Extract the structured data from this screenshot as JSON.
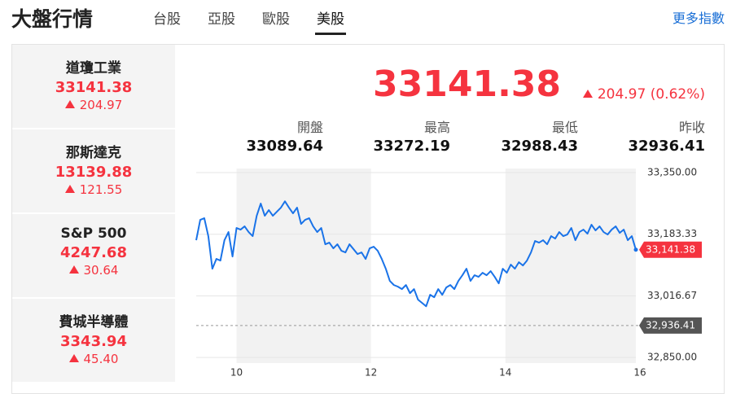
{
  "header": {
    "title": "大盤行情",
    "tabs": [
      "台股",
      "亞股",
      "歐股",
      "美股"
    ],
    "active_tab": 3,
    "more_link": "更多指數"
  },
  "indices": [
    {
      "name": "道瓊工業",
      "price": "33141.38",
      "change": "204.97"
    },
    {
      "name": "那斯達克",
      "price": "13139.88",
      "change": "121.55"
    },
    {
      "name": "S&P 500",
      "price": "4247.68",
      "change": "30.64"
    },
    {
      "name": "費城半導體",
      "price": "3343.94",
      "change": "45.40"
    }
  ],
  "quote": {
    "price": "33141.38",
    "change": "204.97",
    "change_pct": "(0.62%)",
    "stats": [
      {
        "label": "開盤",
        "value": "33089.64"
      },
      {
        "label": "最高",
        "value": "33272.19"
      },
      {
        "label": "最低",
        "value": "32988.43"
      },
      {
        "label": "昨收",
        "value": "32936.41"
      }
    ]
  },
  "chart_data": {
    "type": "line",
    "color": "#1a73e8",
    "x": [
      9.4,
      9.46,
      9.52,
      9.58,
      9.64,
      9.7,
      9.76,
      9.82,
      9.88,
      9.94,
      10,
      10.06,
      10.12,
      10.18,
      10.24,
      10.3,
      10.36,
      10.42,
      10.48,
      10.54,
      10.6,
      10.66,
      10.72,
      10.78,
      10.84,
      10.9,
      10.96,
      11.02,
      11.08,
      11.14,
      11.2,
      11.26,
      11.32,
      11.38,
      11.44,
      11.5,
      11.56,
      11.62,
      11.68,
      11.74,
      11.8,
      11.86,
      11.92,
      11.98,
      12.04,
      12.1,
      12.16,
      12.22,
      12.28,
      12.34,
      12.4,
      12.46,
      12.52,
      12.58,
      12.64,
      12.7,
      12.76,
      12.82,
      12.88,
      12.94,
      13,
      13.06,
      13.12,
      13.18,
      13.24,
      13.3,
      13.36,
      13.42,
      13.48,
      13.54,
      13.6,
      13.66,
      13.72,
      13.78,
      13.84,
      13.9,
      13.96,
      14.02,
      14.08,
      14.14,
      14.2,
      14.26,
      14.32,
      14.38,
      14.44,
      14.5,
      14.56,
      14.62,
      14.68,
      14.74,
      14.8,
      14.86,
      14.92,
      14.98,
      15.04,
      15.1,
      15.16,
      15.22,
      15.28,
      15.34,
      15.4,
      15.46,
      15.52,
      15.58,
      15.64,
      15.7,
      15.76,
      15.82,
      15.88,
      15.94
    ],
    "values": [
      33167.2,
      33222.2,
      33226.7,
      33178.2,
      33090.1,
      33116.5,
      33112.1,
      33167.2,
      33189.2,
      33123.1,
      33200.2,
      33195.8,
      33204.6,
      33189.2,
      33178.2,
      33233.3,
      33266.3,
      33233.3,
      33248.7,
      33233.3,
      33244.3,
      33255.3,
      33272.19,
      33255.3,
      33239.9,
      33255.3,
      33211.2,
      33222.2,
      33226.7,
      33204.6,
      33189.2,
      33200.2,
      33156.2,
      33160.6,
      33145.2,
      33156.2,
      33138.6,
      33134.1,
      33156.2,
      33143.0,
      33129.7,
      33134.1,
      33116.5,
      33145.2,
      33149.6,
      33138.6,
      33116.5,
      33090.1,
      33057.1,
      33046.0,
      33041.6,
      33035.0,
      33046.0,
      33024.0,
      33035.0,
      33006.4,
      32997.6,
      32988.43,
      33019.6,
      33013.0,
      33035.0,
      33019.6,
      33039.4,
      33046.0,
      33035.0,
      33057.1,
      33072.5,
      33090.1,
      33057.1,
      33072.5,
      33068.1,
      33079.1,
      33072.5,
      33083.5,
      33068.1,
      33050.4,
      33090.1,
      33079.1,
      33101.1,
      33090.1,
      33107.7,
      33098.9,
      33112.1,
      33134.1,
      33165.0,
      33160.6,
      33167.2,
      33156.2,
      33178.2,
      33171.6,
      33189.2,
      33178.2,
      33182.6,
      33200.2,
      33167.2,
      33189.2,
      33195.8,
      33184.8,
      33209.0,
      33193.6,
      33204.6,
      33189.2,
      33182.6,
      33195.8,
      33204.6,
      33187.0,
      33195.8,
      33167.2,
      33178.2,
      33141.38
    ],
    "xlim": [
      9.4,
      15.94
    ],
    "xticks": [
      10,
      12,
      14,
      16
    ],
    "ylim": [
      32835,
      33361
    ],
    "yticks": [
      {
        "value": 32850,
        "label": "32,850.00"
      },
      {
        "value": 33016.67,
        "label": "33,016.67"
      },
      {
        "value": 33183.33,
        "label": "33,183.33"
      },
      {
        "value": 33350,
        "label": "33,350.00"
      }
    ],
    "grid": true,
    "last_label": {
      "value": 33141.38,
      "label": "33,141.38",
      "color": "#f5333f"
    },
    "reference_line": {
      "value": 32936.41,
      "label": "32,936.41",
      "color": "#555555"
    }
  }
}
